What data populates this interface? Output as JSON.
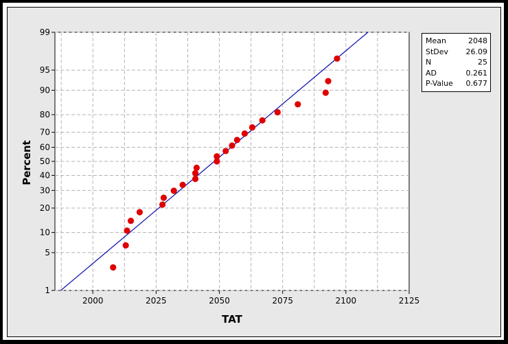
{
  "chart_data": {
    "type": "scatter",
    "subtype": "probability-plot",
    "title": "",
    "xlabel": "TAT",
    "ylabel": "Percent",
    "xlim": [
      1985,
      2125
    ],
    "ylim": [
      1,
      99
    ],
    "yscale": "normal-probability",
    "grid": true,
    "x_ticks": [
      2000,
      2025,
      2050,
      2075,
      2100,
      2125
    ],
    "y_ticks": [
      1,
      5,
      10,
      20,
      30,
      40,
      50,
      60,
      70,
      80,
      90,
      95,
      99
    ],
    "points": [
      {
        "x": 2008.0,
        "y": 2.8
      },
      {
        "x": 2013.0,
        "y": 6.5
      },
      {
        "x": 2013.5,
        "y": 10.6
      },
      {
        "x": 2015.0,
        "y": 14.2
      },
      {
        "x": 2018.5,
        "y": 18.0
      },
      {
        "x": 2027.5,
        "y": 21.8
      },
      {
        "x": 2028.0,
        "y": 25.6
      },
      {
        "x": 2032.0,
        "y": 29.8
      },
      {
        "x": 2035.5,
        "y": 33.6
      },
      {
        "x": 2040.5,
        "y": 37.6
      },
      {
        "x": 2040.5,
        "y": 41.6
      },
      {
        "x": 2041.0,
        "y": 45.4
      },
      {
        "x": 2049.0,
        "y": 50.0
      },
      {
        "x": 2049.0,
        "y": 53.6
      },
      {
        "x": 2052.5,
        "y": 57.4
      },
      {
        "x": 2055.0,
        "y": 61.2
      },
      {
        "x": 2057.0,
        "y": 65.0
      },
      {
        "x": 2060.0,
        "y": 69.2
      },
      {
        "x": 2063.0,
        "y": 73.0
      },
      {
        "x": 2067.0,
        "y": 77.0
      },
      {
        "x": 2073.0,
        "y": 81.2
      },
      {
        "x": 2081.0,
        "y": 84.8
      },
      {
        "x": 2092.0,
        "y": 89.2
      },
      {
        "x": 2093.0,
        "y": 92.6
      },
      {
        "x": 2096.5,
        "y": 96.8
      }
    ],
    "fit_line": {
      "mean": 2048,
      "stdev": 26.09
    },
    "colors": {
      "points": "#e00000",
      "fit_line": "#1515b0",
      "grid": "#b4b4b4"
    },
    "legend": {
      "placement": "top-right",
      "rows": [
        {
          "label": "Mean",
          "value": "2048"
        },
        {
          "label": "StDev",
          "value": "26.09"
        },
        {
          "label": "N",
          "value": "25"
        },
        {
          "label": "AD",
          "value": "0.261"
        },
        {
          "label": "P-Value",
          "value": "0.677"
        }
      ]
    }
  }
}
